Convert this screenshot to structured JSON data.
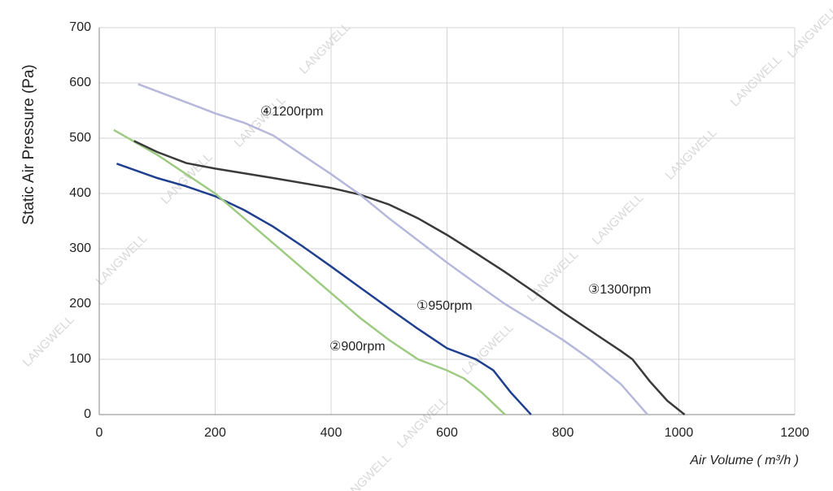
{
  "chart_data": {
    "type": "line",
    "x_label": "Air Volume ( m³/h )",
    "y_label": "Static Air Pressure  (Pa)",
    "watermark": "LANGWELL",
    "xlim": [
      0,
      1200
    ],
    "xticks": [
      0,
      200,
      400,
      600,
      800,
      1000,
      1200
    ],
    "ylim": [
      0,
      700
    ],
    "yticks": [
      0,
      100,
      200,
      300,
      400,
      500,
      600,
      700
    ],
    "grid": true,
    "series": [
      {
        "name": "①950rpm",
        "color": "#1f3f8f",
        "x": [
          30,
          100,
          150,
          200,
          250,
          300,
          350,
          400,
          450,
          500,
          550,
          600,
          650,
          680,
          710,
          745
        ],
        "values": [
          454,
          428,
          413,
          395,
          370,
          340,
          305,
          268,
          230,
          192,
          155,
          120,
          100,
          80,
          40,
          0
        ]
      },
      {
        "name": "②900rpm",
        "color": "#9dcb82",
        "x": [
          25,
          100,
          150,
          200,
          250,
          300,
          350,
          400,
          450,
          500,
          550,
          600,
          630,
          660,
          700
        ],
        "values": [
          515,
          470,
          435,
          400,
          355,
          310,
          265,
          220,
          175,
          135,
          100,
          80,
          65,
          40,
          0
        ]
      },
      {
        "name": "③1300rpm",
        "color": "#3a3a3a",
        "x": [
          60,
          100,
          150,
          200,
          300,
          400,
          450,
          500,
          550,
          600,
          650,
          700,
          750,
          800,
          850,
          900,
          920,
          950,
          980,
          1010
        ],
        "values": [
          495,
          475,
          455,
          445,
          428,
          410,
          398,
          380,
          355,
          325,
          292,
          258,
          222,
          185,
          150,
          115,
          100,
          60,
          25,
          0
        ]
      },
      {
        "name": "④1200rpm",
        "color": "#b5b8da",
        "x": [
          67,
          150,
          200,
          250,
          300,
          350,
          400,
          450,
          500,
          550,
          600,
          650,
          700,
          750,
          800,
          850,
          900,
          946
        ],
        "values": [
          598,
          565,
          545,
          528,
          505,
          470,
          435,
          398,
          355,
          315,
          275,
          237,
          200,
          168,
          135,
          98,
          55,
          0
        ]
      }
    ]
  }
}
